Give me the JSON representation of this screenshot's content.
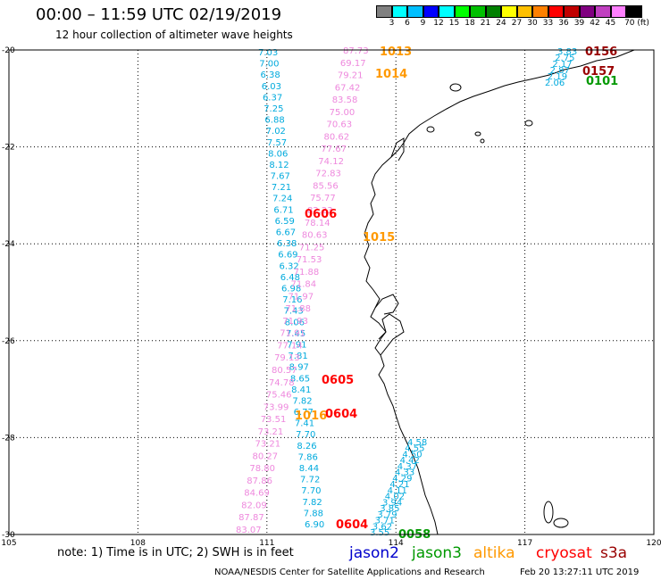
{
  "header": {
    "title": "00:00 – 11:59 UTC 02/19/2019",
    "subtitle": "12 hour collection of altimeter wave heights"
  },
  "color_scale": {
    "labels": [
      "3",
      "6",
      "9",
      "12",
      "15",
      "18",
      "21",
      "24",
      "27",
      "30",
      "33",
      "36",
      "39",
      "42",
      "45",
      "70 (ft)"
    ],
    "colors": [
      "#808080",
      "#00ffff",
      "#00bfff",
      "#0000ff",
      "#00ffff",
      "#00ff00",
      "#00c000",
      "#008000",
      "#ffff00",
      "#ffc000",
      "#ff8000",
      "#ff0000",
      "#c00000",
      "#800080",
      "#c040c0",
      "#ff80ff",
      "#000000"
    ]
  },
  "axes": {
    "x_ticks": [
      "105",
      "108",
      "111",
      "114",
      "117",
      "120"
    ],
    "y_ticks": [
      "-20",
      "-22",
      "-24",
      "-26",
      "-28",
      "-30"
    ]
  },
  "colors": {
    "jason2": "#0000cc",
    "jason3": "#009900",
    "altika": "#ff9900",
    "cryosat": "#ff0000",
    "s3a": "#990000",
    "cyan_track": "#00aadd",
    "pink_track": "#ee88dd",
    "coast": "#000000"
  },
  "tracks": {
    "cyan_values": [
      "7.03",
      "7.00",
      "6.38",
      "6.03",
      "6.37",
      "7.25",
      "6.88",
      "7.02",
      "7.57",
      "8.06",
      "8.12",
      "7.67",
      "7.21",
      "7.24",
      "6.71",
      "6.59",
      "6.67",
      "6.38",
      "6.69",
      "6.32",
      "6.48",
      "6.98",
      "7.16",
      "7.43",
      "8.06",
      "7.45",
      "7.91",
      "7.81",
      "8.97",
      "8.65",
      "8.41",
      "7.82",
      "6.77",
      "7.41",
      "7.70",
      "8.26",
      "7.86",
      "8.44",
      "7.72",
      "7.70",
      "7.82",
      "7.88",
      "6.90"
    ],
    "pink_values": [
      "87.73",
      "69.17",
      "79.21",
      "67.42",
      "83.58",
      "75.00",
      "70.63",
      "80.62",
      "77.67",
      "74.12",
      "72.83",
      "85.56",
      "75.77",
      "82.23",
      "78.14",
      "80.63",
      "71.25",
      "71.53",
      "71.88",
      "71.84",
      "71.97",
      "71.88",
      "71.93",
      "71.91",
      "77.14",
      "79.13",
      "80.57",
      "74.78",
      "75.46",
      "73.99",
      "73.51",
      "73.21",
      "73.21",
      "80.27",
      "78.80",
      "87.86",
      "84.69",
      "82.09",
      "87.87",
      "83.07"
    ],
    "diag_values": [
      "4.58",
      "4.55",
      "4.50",
      "4.42",
      "4.37",
      "4.33",
      "4.29",
      "4.21",
      "4.11",
      "4.02",
      "3.94",
      "3.85",
      "3.79",
      "3.71",
      "3.62",
      "3.55"
    ],
    "ne_values": [
      "3.83",
      "2.75",
      "2.17",
      "2.87",
      "2.19",
      "2.06"
    ]
  },
  "time_labels": [
    {
      "text": "1013",
      "sat": "altika"
    },
    {
      "text": "1014",
      "sat": "altika"
    },
    {
      "text": "0606",
      "sat": "cryosat"
    },
    {
      "text": "1015",
      "sat": "altika"
    },
    {
      "text": "0605",
      "sat": "cryosat"
    },
    {
      "text": "1016",
      "sat": "altika"
    },
    {
      "text": "0604",
      "sat": "cryosat"
    },
    {
      "text": "0604",
      "sat": "cryosat"
    },
    {
      "text": "0058",
      "sat": "jason3"
    },
    {
      "text": "0156",
      "sat": "s3a"
    },
    {
      "text": "0157",
      "sat": "s3a"
    },
    {
      "text": "0101",
      "sat": "jason3"
    }
  ],
  "footer": {
    "note": "note: 1) Time is in UTC; 2) SWH is in feet",
    "legend": {
      "jason2": "jason2",
      "jason3": "jason3",
      "altika": "altika",
      "cryosat": "cryosat",
      "s3a": "s3a"
    },
    "credit": "NOAA/NESDIS Center for Satellite Applications and Research",
    "stamp": "Feb 20 13:27:11 UTC 2019"
  }
}
